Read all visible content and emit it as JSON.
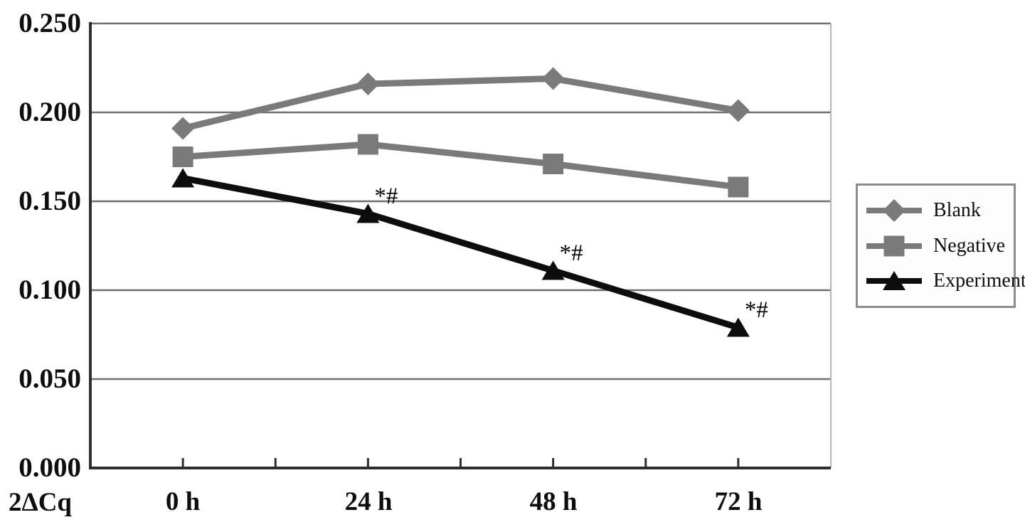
{
  "chart_data": {
    "type": "line",
    "title": "",
    "categories": [
      "0 h",
      "24 h",
      "48 h",
      "72 h"
    ],
    "series": [
      {
        "name": "Blank",
        "marker": "diamond",
        "color": "#7a7a7a",
        "values": [
          0.191,
          0.216,
          0.219,
          0.201
        ],
        "annotations": [
          "",
          "",
          "",
          ""
        ]
      },
      {
        "name": "Negative",
        "marker": "square",
        "color": "#7a7a7a",
        "values": [
          0.175,
          0.182,
          0.171,
          0.158
        ],
        "annotations": [
          "",
          "",
          "",
          ""
        ]
      },
      {
        "name": "Experiment",
        "marker": "triangle",
        "color": "#0d0d0d",
        "values": [
          0.163,
          0.143,
          0.111,
          0.079
        ],
        "annotations": [
          "",
          "*#",
          "*#",
          "*#"
        ]
      }
    ],
    "xlabel": "",
    "ylabel": "2ΔCq",
    "ylim": [
      0,
      0.25
    ],
    "ytick_step": 0.05,
    "ytick_labels": [
      "0.250",
      "0.200",
      "0.150",
      "0.100",
      "0.050",
      "0.000"
    ],
    "grid": true,
    "legend_position": "right",
    "colors": {
      "gridline": "#6f6f6f",
      "axis": "#2e2e2e",
      "plot_right_border": "#b3b3b3",
      "legend_border": "#8c8c8c",
      "text": "#0e0e0e",
      "background": "#ffffff"
    }
  }
}
